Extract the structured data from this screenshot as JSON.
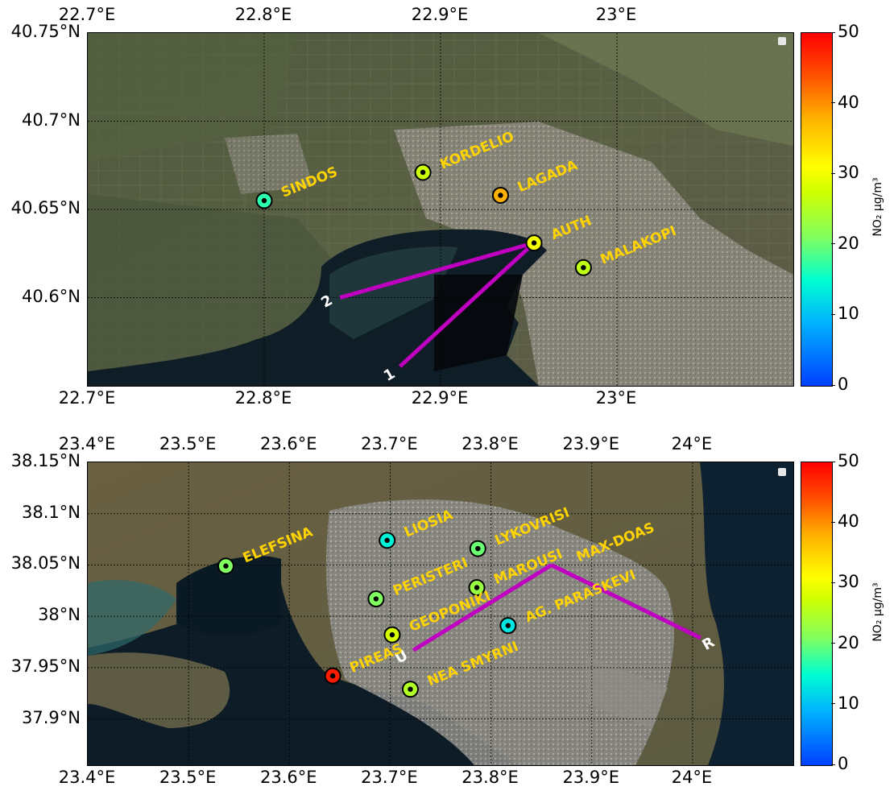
{
  "maps": [
    {
      "id": "thessaloniki",
      "lon_range": [
        22.7,
        23.1
      ],
      "lat_range": [
        40.55,
        40.75
      ],
      "xticks": [
        {
          "label": "22.7°E",
          "value": 22.7
        },
        {
          "label": "22.8°E",
          "value": 22.8
        },
        {
          "label": "22.9°E",
          "value": 22.9
        },
        {
          "label": "23°E",
          "value": 23.0
        }
      ],
      "yticks": [
        {
          "label": "40.75°N",
          "value": 40.75
        },
        {
          "label": "40.7°N",
          "value": 40.7
        },
        {
          "label": "40.65°N",
          "value": 40.65
        },
        {
          "label": "40.6°N",
          "value": 40.6
        }
      ],
      "stations": [
        {
          "name": "SINDOS",
          "lon": 22.8,
          "lat": 40.655,
          "no2": 17
        },
        {
          "name": "KORDELIO",
          "lon": 22.89,
          "lat": 40.671,
          "no2": 27
        },
        {
          "name": "LAGADA",
          "lon": 22.934,
          "lat": 40.658,
          "no2": 38
        },
        {
          "name": "AUTH",
          "lon": 22.953,
          "lat": 40.631,
          "no2": 30
        },
        {
          "name": "MALAKOPI",
          "lon": 22.981,
          "lat": 40.617,
          "no2": 26
        }
      ],
      "paths": [
        {
          "label": "1",
          "from": [
            22.953,
            40.631
          ],
          "to": [
            22.877,
            40.561
          ]
        },
        {
          "label": "2",
          "from": [
            22.953,
            40.631
          ],
          "to": [
            22.843,
            40.6
          ]
        }
      ],
      "colorbar": {
        "min": 0,
        "max": 50,
        "ticks": [
          "0",
          "10",
          "20",
          "30",
          "40",
          "50"
        ],
        "label": "NO₂ μg/m³"
      }
    },
    {
      "id": "athens",
      "lon_range": [
        23.4,
        24.1
      ],
      "lat_range": [
        37.855,
        38.15
      ],
      "xticks": [
        {
          "label": "23.4°E",
          "value": 23.4
        },
        {
          "label": "23.5°E",
          "value": 23.5
        },
        {
          "label": "23.6°E",
          "value": 23.6
        },
        {
          "label": "23.7°E",
          "value": 23.7
        },
        {
          "label": "23.8°E",
          "value": 23.8
        },
        {
          "label": "23.9°E",
          "value": 23.9
        },
        {
          "label": "24°E",
          "value": 24.0
        }
      ],
      "yticks": [
        {
          "label": "38.15°N",
          "value": 38.15
        },
        {
          "label": "38.1°N",
          "value": 38.1
        },
        {
          "label": "38.05°N",
          "value": 38.05
        },
        {
          "label": "38°N",
          "value": 38.0
        },
        {
          "label": "37.95°N",
          "value": 37.95
        },
        {
          "label": "37.9°N",
          "value": 37.9
        }
      ],
      "stations": [
        {
          "name": "ELEFSINA",
          "lon": 23.537,
          "lat": 38.049,
          "no2": 21
        },
        {
          "name": "LIOSIA",
          "lon": 23.697,
          "lat": 38.074,
          "no2": 14
        },
        {
          "name": "LYKOVRISI",
          "lon": 23.787,
          "lat": 38.066,
          "no2": 20
        },
        {
          "name": "PERISTERI",
          "lon": 23.686,
          "lat": 38.017,
          "no2": 21
        },
        {
          "name": "MAROUSI",
          "lon": 23.786,
          "lat": 38.028,
          "no2": 23
        },
        {
          "name": "GEOPONIKI",
          "lon": 23.702,
          "lat": 37.982,
          "no2": 28
        },
        {
          "name": "AG. PARASKEVI",
          "lon": 23.817,
          "lat": 37.991,
          "no2": 13
        },
        {
          "name": "PIREAS",
          "lon": 23.643,
          "lat": 37.942,
          "no2": 48
        },
        {
          "name": "NEA SMYRNI",
          "lon": 23.72,
          "lat": 37.929,
          "no2": 25
        }
      ],
      "paths": [
        {
          "label": "U",
          "from": [
            23.86,
            38.05
          ],
          "to": [
            23.723,
            37.967
          ]
        },
        {
          "label": "R",
          "from": [
            23.86,
            38.05
          ],
          "to": [
            24.008,
            37.979
          ]
        }
      ],
      "annotations": [
        {
          "label": "MAX-DOAS"
        }
      ],
      "colorbar": {
        "min": 0,
        "max": 50,
        "ticks": [
          "0",
          "10",
          "20",
          "30",
          "40",
          "50"
        ],
        "label": "NO₂ μg/m³"
      }
    }
  ],
  "colors": {
    "path": "#c000c0",
    "station_label": "#ffd400",
    "path_label": "#ffffff",
    "grid": "#000000"
  }
}
